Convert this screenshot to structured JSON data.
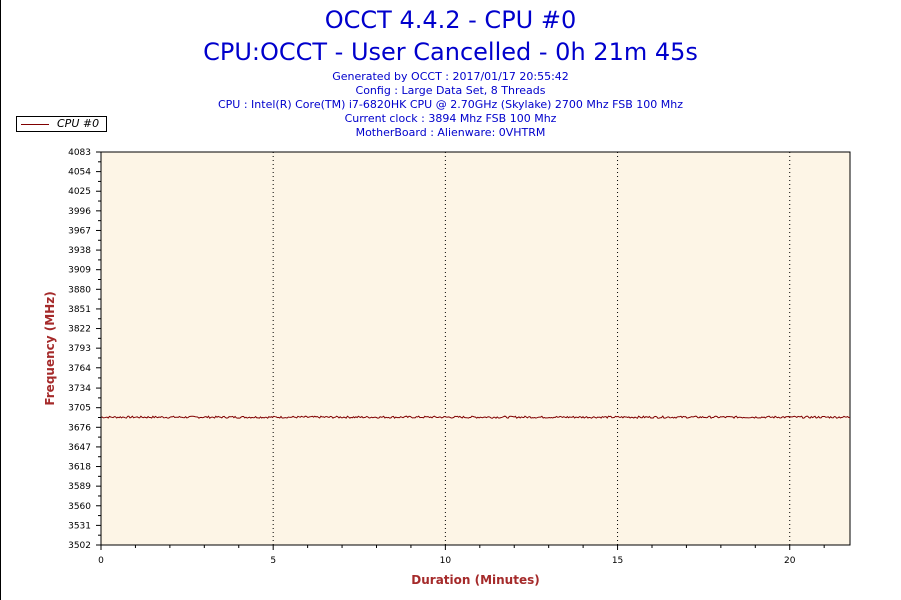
{
  "header": {
    "title": "OCCT 4.4.2 - CPU #0",
    "subtitle": "CPU:OCCT - User Cancelled - 0h 21m 45s",
    "info_lines": [
      "Generated by OCCT : 2017/01/17 20:55:42",
      "Config : Large Data Set, 8 Threads",
      "CPU : Intel(R) Core(TM) i7-6820HK CPU @ 2.70GHz (Skylake) 2700 Mhz FSB 100 Mhz",
      "Current clock : 3894 Mhz FSB 100 Mhz",
      "MotherBoard : Alienware: 0VHTRM"
    ]
  },
  "colors": {
    "title": "#0000cc",
    "plot_background": "#fdf5e6",
    "series": "#800000",
    "axis_title": "#a52a2a"
  },
  "chart_data": {
    "type": "line",
    "xlabel": "Duration (Minutes)",
    "ylabel": "Frequency (MHz)",
    "xlim": [
      0,
      21.75
    ],
    "ylim": [
      3502,
      4083
    ],
    "x_ticks": [
      0,
      5,
      10,
      15,
      20
    ],
    "y_ticks": [
      3502,
      3531,
      3560,
      3589,
      3618,
      3647,
      3676,
      3705,
      3734,
      3764,
      3793,
      3822,
      3851,
      3880,
      3909,
      3938,
      3967,
      3996,
      4025,
      4054,
      4083
    ],
    "grid": "vertical dotted",
    "legend_position": "top-left",
    "series": [
      {
        "name": "CPU #0",
        "x": [
          0,
          21.75
        ],
        "values": [
          3691,
          3691
        ],
        "noise_amplitude_mhz": 1.5
      }
    ]
  }
}
